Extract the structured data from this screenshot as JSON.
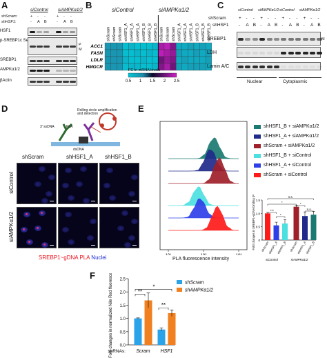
{
  "panel_a": {
    "letter": "A",
    "groups": [
      "siControl",
      "siAMPKα1/2"
    ],
    "row_labels": [
      "shScram:",
      "shHSF1:"
    ],
    "lane_marks": [
      [
        "+",
        "-",
        "-"
      ],
      [
        "-",
        "A",
        "B"
      ]
    ],
    "blots": [
      "HSF1",
      "p-SREBP1c Ser372",
      "SREBP1",
      "AMPKα1/2",
      "βActin"
    ],
    "side_marks": [
      "P",
      "M"
    ]
  },
  "panel_b": {
    "letter": "B",
    "groups": [
      "siControl",
      "siAMPKα1/2"
    ],
    "columns": [
      "shScram",
      "shScram",
      "shScram",
      "shHSF1_A",
      "shHSF1_A",
      "shHSF1_A",
      "shHSF1_B",
      "shHSF1_B",
      "shHSF1_B",
      "shScram",
      "shScram",
      "shScram",
      "shHSF1_A",
      "shHSF1_A",
      "shHSF1_A",
      "shHSF1_B",
      "shHSF1_B",
      "shHSF1_B"
    ],
    "genes": [
      "ACC1",
      "FASN",
      "LDLR",
      "HMGCR"
    ],
    "colorbar_title": "FC in mRNA levels",
    "colorbar_ticks": [
      "0.5",
      "1",
      "1.5",
      "2",
      "2.5"
    ]
  },
  "panel_c": {
    "letter": "C",
    "groups": [
      "siControl",
      "siAMPKα1/2",
      "siControl",
      "siAMPKα1/2"
    ],
    "row_labels": [
      "shScram",
      "shHSF1"
    ],
    "lane_marks": [
      [
        "+",
        "-",
        "-",
        "+",
        "-",
        "-",
        "+",
        "-",
        "-",
        "+",
        "-",
        "-"
      ],
      [
        "-",
        "A",
        "B",
        "-",
        "A",
        "B",
        "-",
        "A",
        "B",
        "-",
        "A",
        "B"
      ]
    ],
    "blots": [
      "SREBP1",
      "LDH",
      "Lamin A/C"
    ],
    "side_mark": "M",
    "fractions": [
      "Nuclear",
      "Cytoplasmic"
    ]
  },
  "panel_d": {
    "letter": "D",
    "schematic_texts": [
      "Rolling circle amplification and detection",
      "3' ssDNA",
      "PLA",
      "dsDNA"
    ],
    "col_labels": [
      "shScram",
      "shHSF1_A",
      "shHSF1_B"
    ],
    "row_labels": [
      "siControl",
      "siAMPKα1/2"
    ],
    "legend": [
      "SREBP1~gDNA",
      "PLA",
      "Nuclei"
    ]
  },
  "panel_e": {
    "letter": "E",
    "xlabel": "PLA fluorescence intensity",
    "x_ticks": [
      "10¹",
      "10²",
      "10³"
    ],
    "legend": [
      {
        "label": "shHSF1_B + siAMPKα1/2",
        "color": "#1a7a72"
      },
      {
        "label": "shHSF1_A + siAMPKα1/2",
        "color": "#1f2a8a"
      },
      {
        "label": "shScram + siAMPKα1/2",
        "color": "#a0202a"
      },
      {
        "label": "shHSF1_B + siControl",
        "color": "#4de0e0"
      },
      {
        "label": "shHSF1_A + siControl",
        "color": "#2f3fe8"
      },
      {
        "label": "shScram + siControl",
        "color": "#ff1a1a"
      }
    ],
    "inset": {
      "ylabel": "Fold changes in SREBP1~gDNA binding (PLA)",
      "y_ticks": [
        "0",
        "0.5",
        "1.0",
        "1.5"
      ],
      "significance": [
        "n.s.",
        "*",
        "***",
        "*",
        "n.s.",
        "*"
      ],
      "bar_labels": [
        "shScram",
        "shHSF1_A",
        "shHSF1_B",
        "shScram",
        "shHSF1_A",
        "shHSF1_B"
      ],
      "groups": [
        "siControl",
        "siAMPKα1/2"
      ]
    }
  },
  "panel_f": {
    "letter": "F",
    "ylabel": "Fold changes in normalized Nile Red fluorescence",
    "row_label": "shRNAs:",
    "legend": [
      "shScram",
      "shAMPKα1/2"
    ],
    "significance": [
      "*",
      "**",
      "**"
    ],
    "y_ticks": [
      "0.0",
      "0.5",
      "1.0",
      "1.5",
      "2.0",
      "2.5"
    ]
  },
  "chart_data": [
    {
      "type": "heatmap",
      "rows": [
        "ACC1",
        "FASN",
        "LDLR",
        "HMGCR"
      ],
      "columns": [
        "siControl shScram 1",
        "siControl shScram 2",
        "siControl shScram 3",
        "siControl shHSF1_A 1",
        "siControl shHSF1_A 2",
        "siControl shHSF1_A 3",
        "siControl shHSF1_B 1",
        "siControl shHSF1_B 2",
        "siControl shHSF1_B 3",
        "siAMPK shScram 1",
        "siAMPK shScram 2",
        "siAMPK shScram 3",
        "siAMPK shHSF1_A 1",
        "siAMPK shHSF1_A 2",
        "siAMPK shHSF1_A 3",
        "siAMPK shHSF1_B 1",
        "siAMPK shHSF1_B 2",
        "siAMPK shHSF1_B 3"
      ],
      "values": [
        [
          1.0,
          1.0,
          1.0,
          0.6,
          0.7,
          0.6,
          0.6,
          0.6,
          0.7,
          2.3,
          2.4,
          2.1,
          0.8,
          0.8,
          0.9,
          0.8,
          0.9,
          0.8
        ],
        [
          1.0,
          1.0,
          1.0,
          0.6,
          0.6,
          0.7,
          0.6,
          0.7,
          0.6,
          2.4,
          2.3,
          2.2,
          0.9,
          0.8,
          0.8,
          0.9,
          0.8,
          0.9
        ],
        [
          1.0,
          1.0,
          1.0,
          0.7,
          0.6,
          0.6,
          0.7,
          0.6,
          0.6,
          2.0,
          2.2,
          2.1,
          0.8,
          0.9,
          0.8,
          0.8,
          0.8,
          0.9
        ],
        [
          1.0,
          1.0,
          1.0,
          0.6,
          0.7,
          0.7,
          0.6,
          0.6,
          0.7,
          2.1,
          2.3,
          2.0,
          0.9,
          0.8,
          0.9,
          0.9,
          0.9,
          0.8
        ]
      ],
      "colorbar": {
        "range": [
          0.5,
          2.5
        ],
        "colors": [
          "#00c8d8",
          "#0a0a2a",
          "#d020c8"
        ]
      }
    },
    {
      "type": "area",
      "x_scale": "log",
      "xlim": [
        5,
        2000
      ],
      "series": [
        {
          "name": "shHSF1_B + siAMPKα1/2",
          "peak": 100
        },
        {
          "name": "shHSF1_A + siAMPKα1/2",
          "peak": 120
        },
        {
          "name": "shScram + siAMPKα1/2",
          "peak": 180
        },
        {
          "name": "shHSF1_B + siControl",
          "peak": 60
        },
        {
          "name": "shHSF1_A + siControl",
          "peak": 75
        },
        {
          "name": "shScram + siControl",
          "peak": 150
        }
      ]
    },
    {
      "type": "bar",
      "categories": [
        "shScram",
        "shHSF1_A",
        "shHSF1_B",
        "shScram",
        "shHSF1_A",
        "shHSF1_B"
      ],
      "values": [
        1.0,
        0.55,
        0.62,
        1.25,
        0.9,
        0.95
      ],
      "errors": [
        0.04,
        0.12,
        0.15,
        0.06,
        0.15,
        0.12
      ],
      "colors": [
        "#ff1a1a",
        "#2f3fe8",
        "#4de0e0",
        "#a0202a",
        "#1f2a8a",
        "#1a7a72"
      ],
      "ylim": [
        0,
        1.5
      ]
    },
    {
      "type": "bar",
      "categories": [
        "Scram",
        "HSF1"
      ],
      "series": [
        {
          "name": "shScram",
          "values": [
            1.0,
            0.58
          ],
          "errors": [
            0.02,
            0.06
          ],
          "color": "#2ba3e8"
        },
        {
          "name": "shAMPKα1/2",
          "values": [
            1.68,
            1.2
          ],
          "errors": [
            0.28,
            0.12
          ],
          "color": "#f08020"
        }
      ],
      "ylim": [
        0,
        2.5
      ]
    }
  ]
}
